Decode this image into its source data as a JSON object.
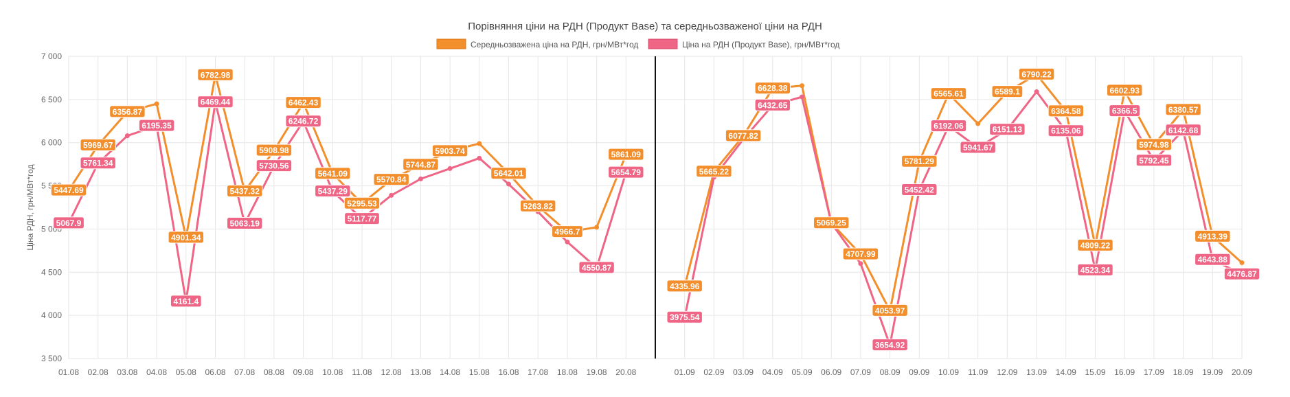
{
  "chart_data": {
    "type": "line",
    "title": "Порівняння ціни на РДН (Продукт Base) та середньозваженої ціни на РДН",
    "ylabel": "Ціна РДН, грн/МВт*год",
    "ylim": [
      3500,
      7000
    ],
    "y_ticks": [
      3500,
      4000,
      4500,
      5000,
      5500,
      6000,
      6500,
      7000
    ],
    "y_tick_labels": [
      "3 500",
      "4 000",
      "4 500",
      "5 000",
      "5 500",
      "6 000",
      "6 500",
      "7 000"
    ],
    "legend_position": "top-center",
    "grid": true,
    "categories": [
      "01.08",
      "02.08",
      "03.08",
      "04.08",
      "05.08",
      "06.08",
      "07.08",
      "08.08",
      "09.08",
      "10.08",
      "11.08",
      "12.08",
      "13.08",
      "14.08",
      "15.08",
      "16.08",
      "17.08",
      "18.08",
      "19.08",
      "20.08",
      "",
      "01.09",
      "02.09",
      "03.09",
      "04.09",
      "05.09",
      "06.09",
      "07.09",
      "08.09",
      "09.09",
      "10.09",
      "11.09",
      "12.09",
      "13.09",
      "14.09",
      "15.09",
      "16.09",
      "17.09",
      "18.09",
      "19.09",
      "20.09"
    ],
    "divider_index": 20,
    "series": [
      {
        "name": "Середньозважена ціна на РДН, грн/МВт*год",
        "color": "#F28E2B",
        "values": [
          5447.69,
          5969.67,
          6356.87,
          6450,
          4901.34,
          6782.98,
          5437.32,
          5908.98,
          6462.43,
          5641.09,
          5295.53,
          5570.84,
          5744.87,
          5903.74,
          5990,
          5642.01,
          5263.82,
          4966.7,
          5020,
          5861.09,
          null,
          4335.96,
          5665.22,
          6077.82,
          6628.38,
          6660,
          5069.25,
          4707.99,
          4053.97,
          5781.29,
          6565.61,
          6220,
          6589.1,
          6790.22,
          6364.58,
          4809.22,
          6602.93,
          5974.98,
          6380.57,
          4913.39,
          4610
        ],
        "labels": [
          "5447.69",
          "5969.67",
          "6356.87",
          "",
          "4901.34",
          "6782.98",
          "5437.32",
          "5908.98",
          "6462.43",
          "5641.09",
          "5295.53",
          "5570.84",
          "5744.87",
          "5903.74",
          "",
          "5642.01",
          "5263.82",
          "4966.7",
          "",
          "5861.09",
          "",
          "4335.96",
          "5665.22",
          "6077.82",
          "6628.38",
          "",
          "5069.25",
          "4707.99",
          "4053.97",
          "5781.29",
          "6565.61",
          "",
          "6589.1",
          "6790.22",
          "6364.58",
          "4809.22",
          "6602.93",
          "5974.98",
          "6380.57",
          "4913.39",
          ""
        ]
      },
      {
        "name": "Ціна на РДН (Продукт Base), грн/МВт*год",
        "color": "#EF6585",
        "values": [
          5067.9,
          5761.34,
          6080,
          6195.35,
          4161.4,
          6469.44,
          5063.19,
          5730.56,
          6246.72,
          5437.29,
          5117.77,
          5390,
          5580,
          5700,
          5820,
          5520,
          5200,
          4850,
          4550.87,
          5654.79,
          null,
          3975.54,
          5600,
          6040,
          6432.65,
          6530,
          5069.25,
          4600,
          3654.92,
          5452.42,
          6192.06,
          5941.67,
          6151.13,
          6590,
          6135.06,
          4523.34,
          6366.5,
          5792.45,
          6142.68,
          4643.88,
          4476.87
        ],
        "labels": [
          "5067.9",
          "5761.34",
          "",
          "6195.35",
          "4161.4",
          "6469.44",
          "5063.19",
          "5730.56",
          "6246.72",
          "5437.29",
          "5117.77",
          "",
          "",
          "",
          "",
          "",
          "",
          "",
          "4550.87",
          "5654.79",
          "",
          "3975.54",
          "",
          "",
          "6432.65",
          "",
          "",
          "",
          "3654.92",
          "5452.42",
          "6192.06",
          "5941.67",
          "6151.13",
          "",
          "6135.06",
          "4523.34",
          "6366.5",
          "5792.45",
          "6142.68",
          "4643.88",
          "4476.87"
        ]
      }
    ]
  }
}
